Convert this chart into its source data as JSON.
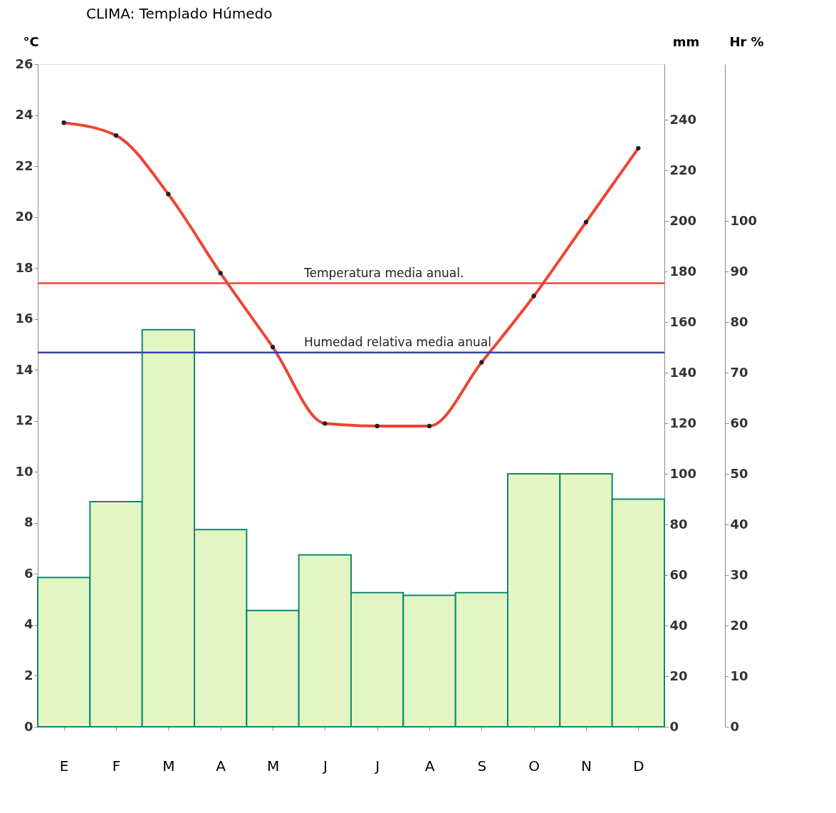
{
  "chart_data": {
    "type": "bar",
    "title": "CLIMA: Templado Húmedo",
    "categories": [
      "E",
      "F",
      "M",
      "A",
      "M",
      "J",
      "J",
      "A",
      "S",
      "O",
      "N",
      "D"
    ],
    "ylabel": "°C",
    "y2label": "mm",
    "y3label": "Hr %",
    "ylim": [
      0,
      26
    ],
    "yticks": [
      0,
      2,
      4,
      6,
      8,
      10,
      12,
      14,
      16,
      18,
      20,
      22,
      24,
      26
    ],
    "y2lim": [
      0,
      262
    ],
    "y2ticks": [
      0,
      20,
      40,
      60,
      80,
      100,
      120,
      140,
      160,
      180,
      200,
      220,
      240
    ],
    "y3lim": [
      0,
      131
    ],
    "y3ticks": [
      0,
      10,
      20,
      30,
      40,
      50,
      60,
      70,
      80,
      90,
      100
    ],
    "series": [
      {
        "axis": "y2",
        "color": "#e4f5c4",
        "values": [
          59,
          89,
          157,
          78,
          46,
          68,
          53,
          52,
          53,
          100,
          100,
          90
        ]
      },
      {
        "type": "line",
        "axis": "y",
        "color": "#ee4433",
        "values": [
          23.7,
          23.2,
          20.9,
          17.8,
          14.9,
          11.9,
          11.8,
          11.8,
          14.3,
          16.9,
          19.8,
          22.7
        ]
      }
    ],
    "ref_lines": [
      {
        "axis": "y",
        "value": 17.4,
        "label": "Temperatura media anual.",
        "color": "#ee4433"
      },
      {
        "axis": "y3",
        "value": 74,
        "label": "Humedad relativa media anual",
        "color": "#3344aa"
      }
    ],
    "marker": "circle",
    "grid": false
  }
}
